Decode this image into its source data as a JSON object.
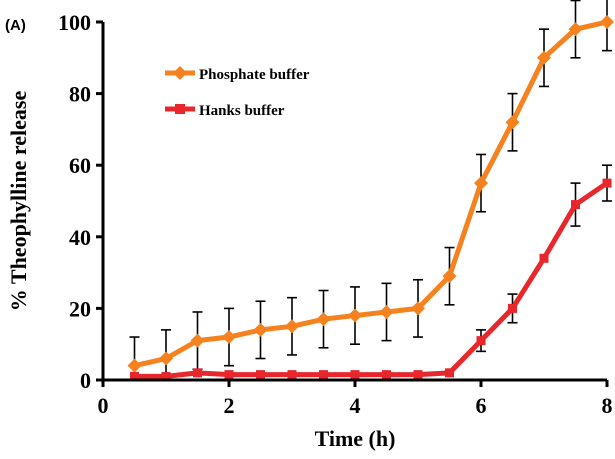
{
  "chart_data": {
    "type": "line",
    "panel_label": "(A)",
    "xlabel": "Time (h)",
    "ylabel": "% Theophylline release",
    "xlim": [
      0,
      8
    ],
    "ylim": [
      0,
      100
    ],
    "x_ticks": [
      0,
      2,
      4,
      6,
      8
    ],
    "y_ticks": [
      0,
      20,
      40,
      60,
      80,
      100
    ],
    "grid": false,
    "legend_position": "top-left",
    "x": [
      0.5,
      1,
      1.5,
      2,
      2.5,
      3,
      3.5,
      4,
      4.5,
      5,
      5.5,
      6,
      6.5,
      7,
      7.5,
      8
    ],
    "series": [
      {
        "name": "Phosphate buffer",
        "color": "#f5821f",
        "marker": "diamond",
        "values": [
          4,
          6,
          11,
          12,
          14,
          15,
          17,
          18,
          19,
          20,
          29,
          55,
          72,
          90,
          98,
          100
        ],
        "error": [
          8,
          8,
          8,
          8,
          8,
          8,
          8,
          8,
          8,
          8,
          8,
          8,
          8,
          8,
          8,
          8
        ]
      },
      {
        "name": "Hanks buffer",
        "color": "#e8272d",
        "marker": "square",
        "values": [
          1,
          1,
          2,
          1.5,
          1.5,
          1.5,
          1.5,
          1.5,
          1.5,
          1.5,
          2,
          11,
          20,
          34,
          49,
          55
        ],
        "error": [
          0,
          0,
          0,
          0,
          0,
          0,
          0,
          0,
          0,
          0,
          0,
          3,
          4,
          0,
          6,
          5
        ]
      }
    ]
  }
}
